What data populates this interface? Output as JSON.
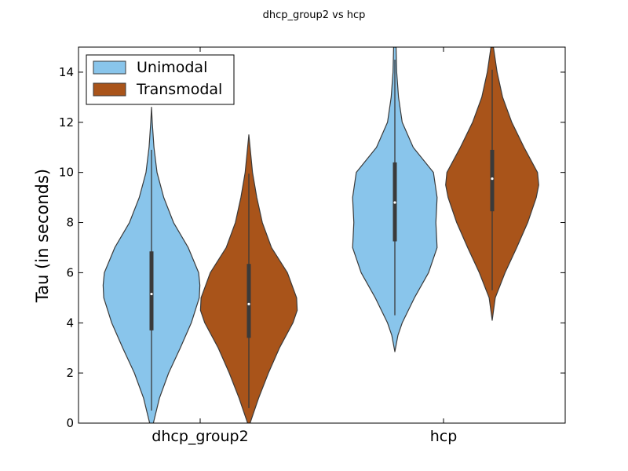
{
  "chart_data": {
    "type": "violin",
    "title": "dhcp_group2 vs hcp",
    "xlabel": "",
    "ylabel": "Tau (in seconds)",
    "categories": [
      "dhcp_group2",
      "hcp"
    ],
    "ylim": [
      0,
      15
    ],
    "yticks": [
      0,
      2,
      4,
      6,
      8,
      10,
      12,
      14
    ],
    "grid": false,
    "legend_position": "top-left",
    "series": [
      {
        "name": "Unimodal",
        "color": "#89C5EB",
        "stats": [
          {
            "whisker_low": 0.5,
            "q1": 3.7,
            "median": 5.15,
            "q3": 6.85,
            "whisker_high": 10.9
          },
          {
            "whisker_low": 4.3,
            "q1": 7.25,
            "median": 8.8,
            "q3": 10.4,
            "whisker_high": 14.5
          }
        ],
        "density": [
          {
            "y": [
              -0.5,
              0,
              1,
              2,
              3,
              4,
              5,
              5.5,
              6,
              7,
              8,
              9,
              10,
              11,
              12,
              12.6
            ],
            "half_width": [
              0.0,
              0.03,
              0.13,
              0.28,
              0.47,
              0.65,
              0.78,
              0.79,
              0.77,
              0.6,
              0.36,
              0.2,
              0.09,
              0.04,
              0.012,
              0.0
            ]
          },
          {
            "y": [
              2.85,
              3.5,
              4,
              5,
              6,
              7,
              8,
              8.5,
              9,
              10,
              11,
              12,
              13,
              14,
              15
            ],
            "half_width": [
              0.0,
              0.05,
              0.12,
              0.32,
              0.55,
              0.69,
              0.67,
              0.68,
              0.69,
              0.63,
              0.3,
              0.12,
              0.06,
              0.03,
              0.02
            ]
          }
        ]
      },
      {
        "name": "Transmodal",
        "color": "#A9541A",
        "stats": [
          {
            "whisker_low": 0.6,
            "q1": 3.4,
            "median": 4.75,
            "q3": 6.35,
            "whisker_high": 9.95
          },
          {
            "whisker_low": 5.3,
            "q1": 8.45,
            "median": 9.75,
            "q3": 10.9,
            "whisker_high": 14.1
          }
        ],
        "density": [
          {
            "y": [
              -0.5,
              0,
              1,
              2,
              3,
              4,
              4.5,
              5,
              6,
              7,
              8,
              9,
              10,
              11,
              11.5
            ],
            "half_width": [
              0.0,
              0.02,
              0.16,
              0.32,
              0.5,
              0.72,
              0.79,
              0.78,
              0.63,
              0.37,
              0.22,
              0.13,
              0.06,
              0.02,
              0.0
            ]
          },
          {
            "y": [
              4.1,
              5,
              6,
              7,
              8,
              9,
              9.5,
              10,
              11,
              12,
              13,
              14,
              15
            ],
            "half_width": [
              0.0,
              0.05,
              0.21,
              0.4,
              0.58,
              0.72,
              0.76,
              0.74,
              0.52,
              0.32,
              0.17,
              0.08,
              0.02
            ]
          }
        ]
      }
    ]
  }
}
